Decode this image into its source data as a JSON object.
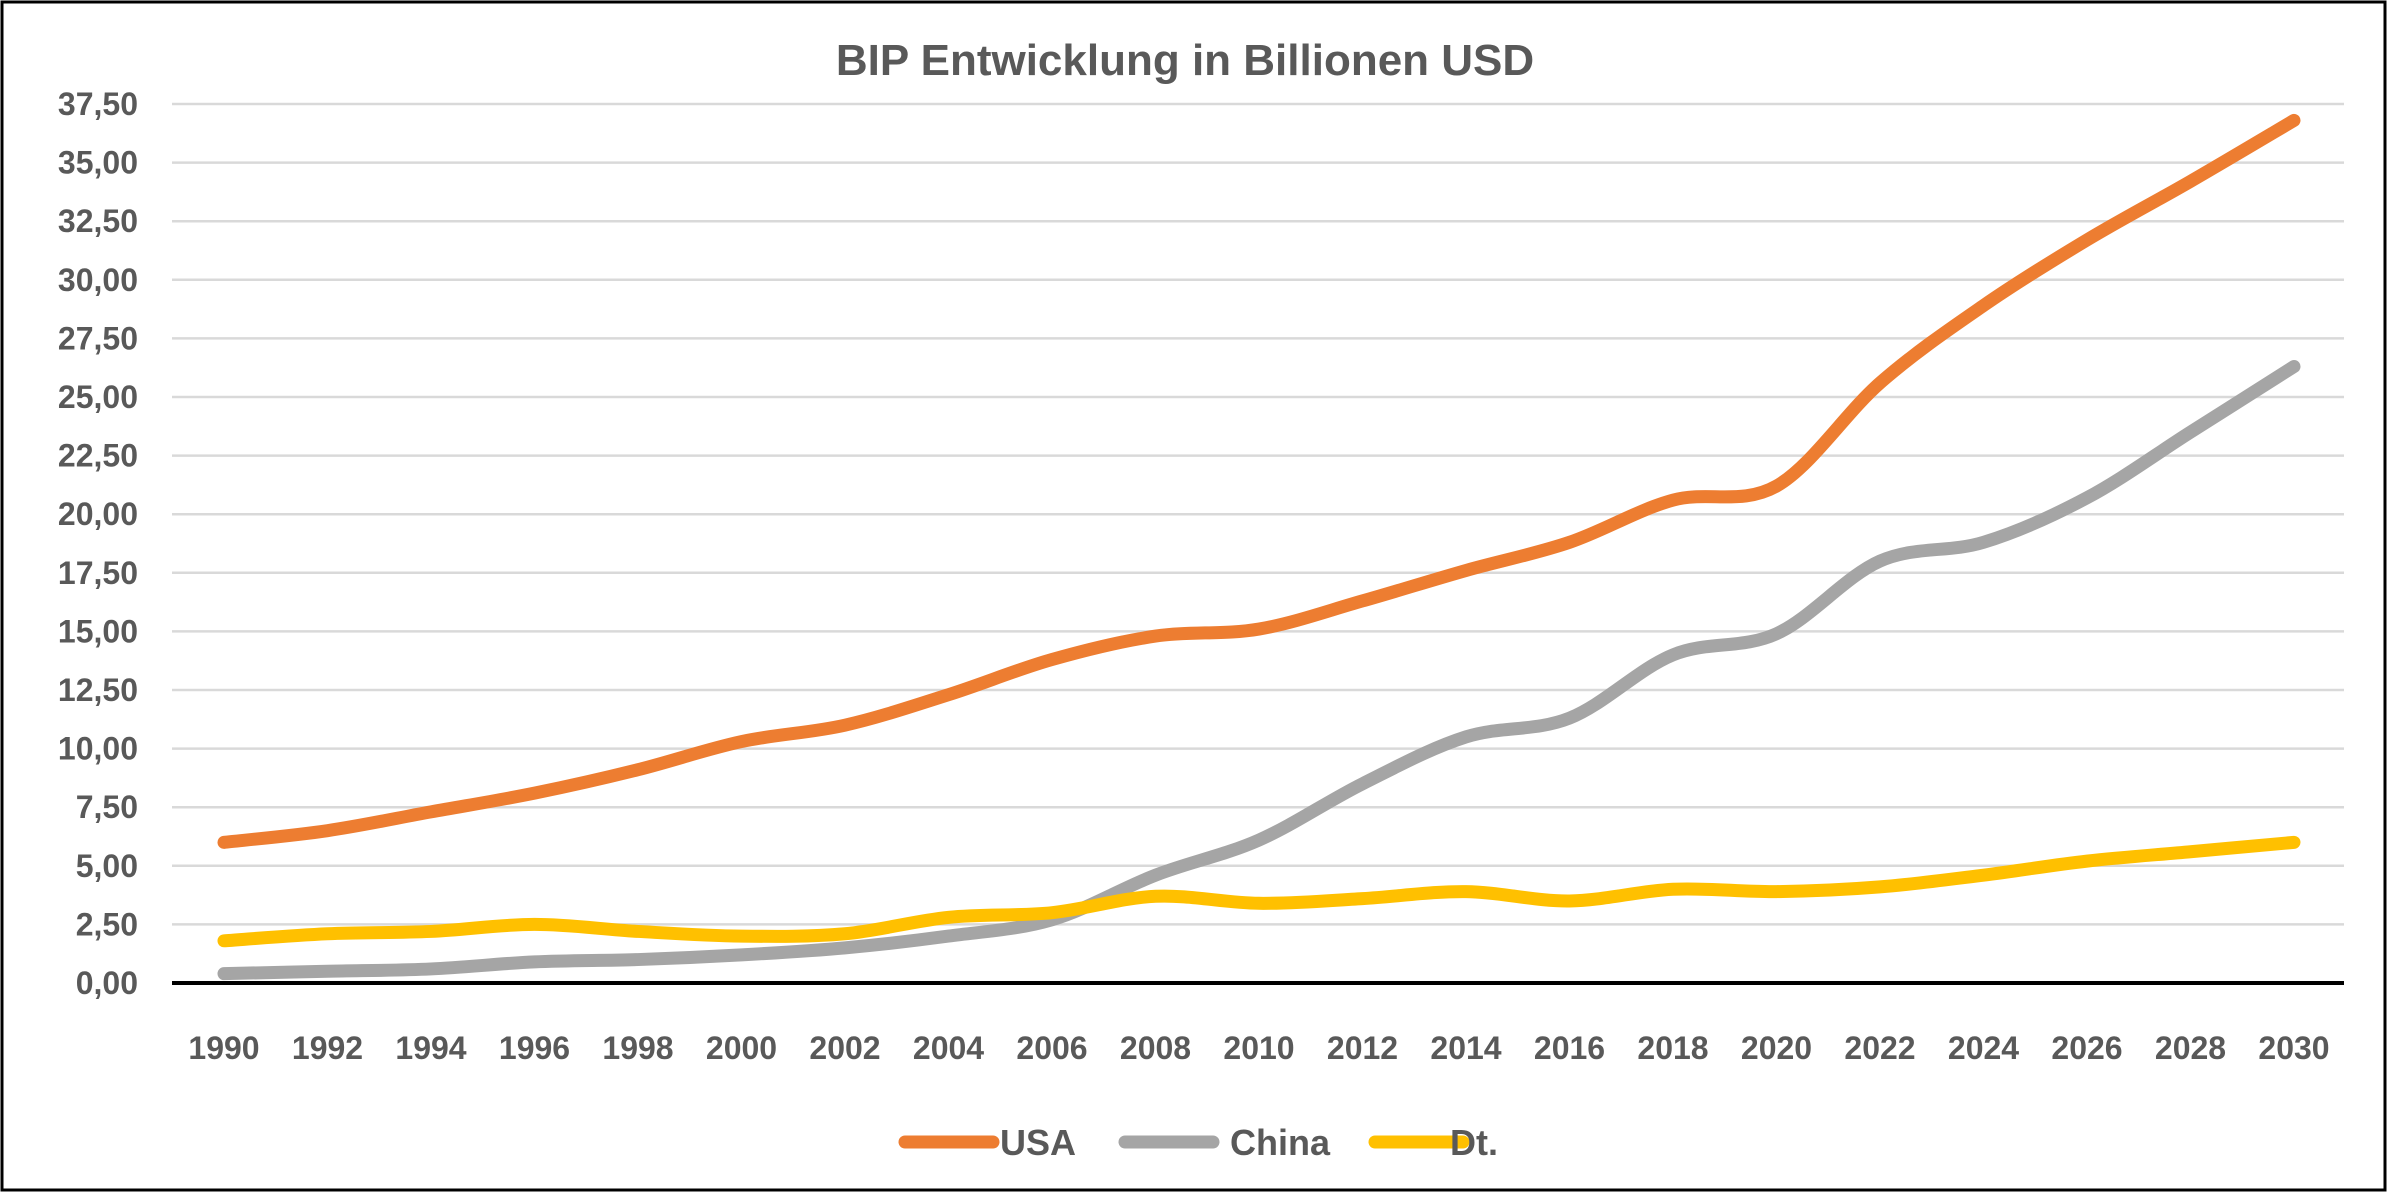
{
  "chart_data": {
    "type": "line",
    "title": "BIP Entwicklung in Billionen USD",
    "xlabel": "",
    "ylabel": "",
    "x": [
      1990,
      1992,
      1994,
      1996,
      1998,
      2000,
      2002,
      2004,
      2006,
      2008,
      2010,
      2012,
      2014,
      2016,
      2018,
      2020,
      2022,
      2024,
      2026,
      2028,
      2030
    ],
    "x_tick_labels": [
      "1990",
      "1992",
      "1994",
      "1996",
      "1998",
      "2000",
      "2002",
      "2004",
      "2006",
      "2008",
      "2010",
      "2012",
      "2014",
      "2016",
      "2018",
      "2020",
      "2022",
      "2024",
      "2026",
      "2028",
      "2030"
    ],
    "y_ticks": [
      0,
      2.5,
      5,
      7.5,
      10,
      12.5,
      15,
      17.5,
      20,
      22.5,
      25,
      27.5,
      30,
      32.5,
      35,
      37.5
    ],
    "y_tick_labels": [
      "0,00",
      "2,50",
      "5,00",
      "7,50",
      "10,00",
      "12,50",
      "15,00",
      "17,50",
      "20,00",
      "22,50",
      "25,00",
      "27,50",
      "30,00",
      "32,50",
      "35,00",
      "37,50"
    ],
    "ylim": [
      0,
      37.5
    ],
    "grid": true,
    "smooth": true,
    "legend_position": "bottom",
    "series": [
      {
        "name": "USA",
        "color": "#ED7D31",
        "values": [
          6.0,
          6.5,
          7.3,
          8.1,
          9.1,
          10.3,
          11.0,
          12.3,
          13.8,
          14.8,
          15.1,
          16.3,
          17.6,
          18.8,
          20.6,
          21.2,
          25.6,
          28.9,
          31.7,
          34.2,
          36.8
        ]
      },
      {
        "name": "China",
        "color": "#A5A5A5",
        "values": [
          0.4,
          0.5,
          0.6,
          0.9,
          1.0,
          1.2,
          1.5,
          2.0,
          2.7,
          4.6,
          6.1,
          8.5,
          10.5,
          11.3,
          14.0,
          14.9,
          18.0,
          18.8,
          20.7,
          23.5,
          26.3
        ]
      },
      {
        "name": "Dt.",
        "color": "#FFC000",
        "values": [
          1.8,
          2.1,
          2.2,
          2.5,
          2.2,
          2.0,
          2.1,
          2.8,
          3.0,
          3.7,
          3.4,
          3.6,
          3.9,
          3.5,
          4.0,
          3.9,
          4.1,
          4.6,
          5.2,
          5.6,
          6.0
        ]
      }
    ]
  }
}
